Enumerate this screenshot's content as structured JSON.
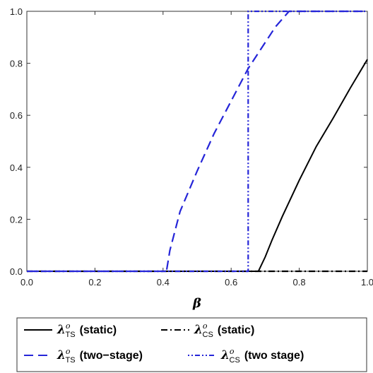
{
  "chart_data": {
    "type": "line",
    "title": "",
    "xlabel": "β",
    "ylabel": "",
    "xlim": [
      0.0,
      1.0
    ],
    "ylim": [
      0.0,
      1.0
    ],
    "x_ticks": [
      "0.0",
      "0.2",
      "0.4",
      "0.6",
      "0.8",
      "1.0"
    ],
    "y_ticks": [
      "0.0",
      "0.2",
      "0.4",
      "0.6",
      "0.8",
      "1.0"
    ],
    "grid": false,
    "legend_position": "bottom",
    "series": [
      {
        "name": "λ°TS (static)",
        "symbol": "λ",
        "sup": "o",
        "sub": "TS",
        "suffix": "(static)",
        "color": "#000000",
        "style": "solid",
        "points": [
          [
            0.0,
            0.0
          ],
          [
            0.68,
            0.0
          ],
          [
            0.7,
            0.055
          ],
          [
            0.72,
            0.12
          ],
          [
            0.75,
            0.21
          ],
          [
            0.8,
            0.35
          ],
          [
            0.85,
            0.48
          ],
          [
            0.9,
            0.59
          ],
          [
            0.95,
            0.705
          ],
          [
            1.0,
            0.815
          ]
        ]
      },
      {
        "name": "λ°CS (static)",
        "symbol": "λ",
        "sup": "o",
        "sub": "CS",
        "suffix": "(static)",
        "color": "#000000",
        "style": "dashdot",
        "points": [
          [
            0.0,
            0.0
          ],
          [
            1.0,
            0.0
          ]
        ]
      },
      {
        "name": "λ°TS (two−stage)",
        "symbol": "λ",
        "sup": "o",
        "sub": "TS",
        "suffix": "(two−stage)",
        "color": "#2525d8",
        "style": "dashed",
        "points": [
          [
            0.0,
            0.0
          ],
          [
            0.41,
            0.0
          ],
          [
            0.42,
            0.08
          ],
          [
            0.45,
            0.23
          ],
          [
            0.5,
            0.385
          ],
          [
            0.55,
            0.53
          ],
          [
            0.6,
            0.655
          ],
          [
            0.65,
            0.78
          ],
          [
            0.7,
            0.88
          ],
          [
            0.73,
            0.94
          ],
          [
            0.77,
            1.0
          ],
          [
            1.0,
            1.0
          ]
        ]
      },
      {
        "name": "λ°CS (two stage)",
        "symbol": "λ",
        "sup": "o",
        "sub": "CS",
        "suffix": "(two stage)",
        "color": "#2525d8",
        "style": "dotdash",
        "points": [
          [
            0.0,
            0.0
          ],
          [
            0.65,
            0.0
          ],
          [
            0.65,
            1.0
          ],
          [
            1.0,
            1.0
          ]
        ]
      }
    ]
  }
}
